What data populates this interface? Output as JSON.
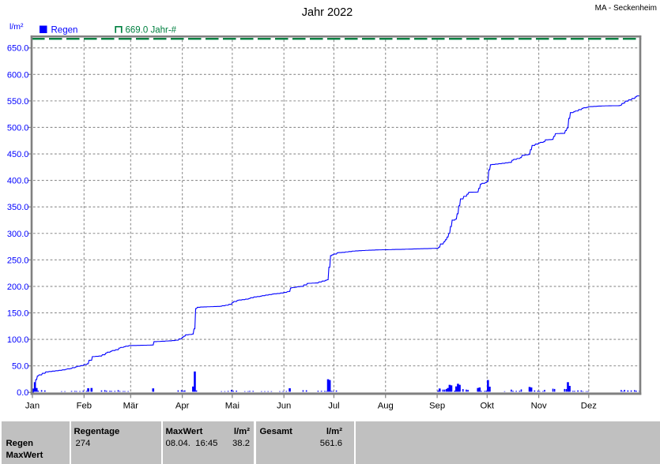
{
  "header": {
    "title": "Jahr 2022",
    "station": "MA - Seckenheim"
  },
  "legend": {
    "unit_label": "l/m²",
    "series_rain_label": "Regen",
    "series_reference_label": "669.0 Jahr-#"
  },
  "colors": {
    "series_blue": "#0000ff",
    "reference_green": "#008040",
    "plot_border_gray": "#808080",
    "grid_gray": "#8c8c8c",
    "table_bg_gray": "#c0c0c0",
    "text_black": "#000000",
    "background": "#ffffff"
  },
  "chart_data": {
    "type": "line+bar",
    "title": "Jahr 2022",
    "station": "MA - Seckenheim",
    "ylabel": "l/m²",
    "ylim": [
      0,
      670
    ],
    "yticks": [
      0,
      50,
      100,
      150,
      200,
      250,
      300,
      350,
      400,
      450,
      500,
      550,
      600,
      650
    ],
    "ytick_labels": [
      "0.0",
      "50.0",
      "100.0",
      "150.0",
      "200.0",
      "250.0",
      "300.0",
      "350.0",
      "400.0",
      "450.0",
      "500.0",
      "550.0",
      "600.0",
      "650.0"
    ],
    "months": [
      "Jan",
      "Feb",
      "Mär",
      "Apr",
      "Mai",
      "Jun",
      "Jul",
      "Aug",
      "Sep",
      "Okt",
      "Nov",
      "Dez"
    ],
    "month_start_days": [
      0,
      31,
      59,
      90,
      120,
      151,
      181,
      212,
      243,
      273,
      304,
      334
    ],
    "days_in_year": 365,
    "grid": true,
    "legend_position": "top",
    "reference_line": {
      "value": 669.0,
      "label": "669.0 Jahr-#",
      "style": "dashed"
    },
    "series": [
      {
        "name": "Regen",
        "type": "bar+cumulative-line",
        "unit": "l/m²",
        "daily_values": [
          6.0,
          18.0,
          7.0,
          2.0,
          0.0,
          3.0,
          0.0,
          2.5,
          0.0,
          0.8,
          0.0,
          0.7,
          0.0,
          0.8,
          0.0,
          0.7,
          0.0,
          1.0,
          0.0,
          1.0,
          0.8,
          0.0,
          0.7,
          1.5,
          0.0,
          1.5,
          1.2,
          0.1,
          1.2,
          0.0,
          2.0,
          0.0,
          1.5,
          6.5,
          0.0,
          7.0,
          0.0,
          0.5,
          0.0,
          0.5,
          0.0,
          2.5,
          0.0,
          3.0,
          1.8,
          0.0,
          1.7,
          1.5,
          0.0,
          1.5,
          0.0,
          3.0,
          1.2,
          0.1,
          1.2,
          1.1,
          0.0,
          1.1,
          0.0,
          0.2,
          0.1,
          0.0,
          0.2,
          0.0,
          0.1,
          0.0,
          0.1,
          0.0,
          0.2,
          0.0,
          0.1,
          0.2,
          6.3,
          0.0,
          0.3,
          0.0,
          0.2,
          0.3,
          0.0,
          0.4,
          0.0,
          0.3,
          0.0,
          0.6,
          0.0,
          0.6,
          0.0,
          2.6,
          0.0,
          3.0,
          2.0,
          2.5,
          0.0,
          0.7,
          0.0,
          0.8,
          9.8,
          38.2,
          2.5,
          0.0,
          0.5,
          0.0,
          0.2,
          0.0,
          0.3,
          0.0,
          0.2,
          0.0,
          0.3,
          0.0,
          0.2,
          0.0,
          0.3,
          1.0,
          0.0,
          1.0,
          0.0,
          1.5,
          0.0,
          3.5,
          2.0,
          0.0,
          2.0,
          0.8,
          0.0,
          0.7,
          0.0,
          1.0,
          0.0,
          1.0,
          1.5,
          0.0,
          1.5,
          0.0,
          0.8,
          0.0,
          0.7,
          1.0,
          0.0,
          1.0,
          0.0,
          1.0,
          0.0,
          1.0,
          0.5,
          0.0,
          0.5,
          0.0,
          1.0,
          0.0,
          1.1,
          0.0,
          1.4,
          0.5,
          6.5,
          0.8,
          0.0,
          0.7,
          0.8,
          0.0,
          0.7,
          0.0,
          2.8,
          0.0,
          2.7,
          0.3,
          0.0,
          0.4,
          0.0,
          0.3,
          0.0,
          1.8,
          0.0,
          1.7,
          0.0,
          1.5,
          1.0,
          23.5,
          22.0,
          1.5,
          1.5,
          0.0,
          2.4,
          0.4,
          0.0,
          0.4,
          0.0,
          0.8,
          0.0,
          0.7,
          0.0,
          0.8,
          0.0,
          0.4,
          0.0,
          0.4,
          0.0,
          0.3,
          0.0,
          0.4,
          0.0,
          0.3,
          0.0,
          0.2,
          0.0,
          0.3,
          0.0,
          0.1,
          0.0,
          0.2,
          0.0,
          0.1,
          0.0,
          0.1,
          0.0,
          0.2,
          0.0,
          0.2,
          0.0,
          0.1,
          0.0,
          0.2,
          0.0,
          0.2,
          0.0,
          0.1,
          0.0,
          0.2,
          0.2,
          0.0,
          0.1,
          0.0,
          0.2,
          0.0,
          0.2,
          0.1,
          0.0,
          0.2,
          0.0,
          0.2,
          0.0,
          0.1,
          0.0,
          2.2,
          6.0,
          0.0,
          4.0,
          4.0,
          5.0,
          7.0,
          13.0,
          12.0,
          0.0,
          2.0,
          10.0,
          15.0,
          13.0,
          0.0,
          5.0,
          0.0,
          4.0,
          3.5,
          0.2,
          0.0,
          0.1,
          0.0,
          0.2,
          7.0,
          8.0,
          1.5,
          0.0,
          1.5,
          2.0,
          22.0,
          9.5,
          0.6,
          0.0,
          0.6,
          0.0,
          0.8,
          0.0,
          0.8,
          0.0,
          0.9,
          0.0,
          0.8,
          0.0,
          4.0,
          1.7,
          0.0,
          1.6,
          0.0,
          1.7,
          4.4,
          0.0,
          0.8,
          0.0,
          0.8,
          9.0,
          8.0,
          0.0,
          2.5,
          0.0,
          2.0,
          1.2,
          0.1,
          1.2,
          3.5,
          0.0,
          0.4,
          0.0,
          0.4,
          5.7,
          5.2,
          0.2,
          0.0,
          0.2,
          0.0,
          0.2,
          5.2,
          5.0,
          18.0,
          11.0,
          0.0,
          1.5,
          1.5,
          0.0,
          2.5,
          0.0,
          2.5,
          1.0,
          0.0,
          1.0,
          1.0,
          0.3,
          0.0,
          0.4,
          0.0,
          0.3,
          0.2,
          0.0,
          0.3,
          0.0,
          0.2,
          0.0,
          0.1,
          0.0,
          0.1,
          0.0,
          0.0,
          0.0,
          0.1,
          0.8,
          3.2,
          1.0,
          3.5,
          0.0,
          2.5,
          0.0,
          2.5,
          0.0,
          3.0,
          2.0,
          0.0,
          2.1
        ],
        "cumulative_total": 561.6
      }
    ]
  },
  "table": {
    "row_labels": [
      "Regen",
      "MaxWert"
    ],
    "columns": [
      {
        "header": "Regentage",
        "header_unit": "",
        "value": "274",
        "value_right": ""
      },
      {
        "header": "MaxWert",
        "header_unit": "l/m²",
        "value": "08.04.  16:45",
        "value_right": "38.2"
      },
      {
        "header": "Gesamt",
        "header_unit": "l/m²",
        "value": "",
        "value_right": "561.6"
      }
    ]
  }
}
